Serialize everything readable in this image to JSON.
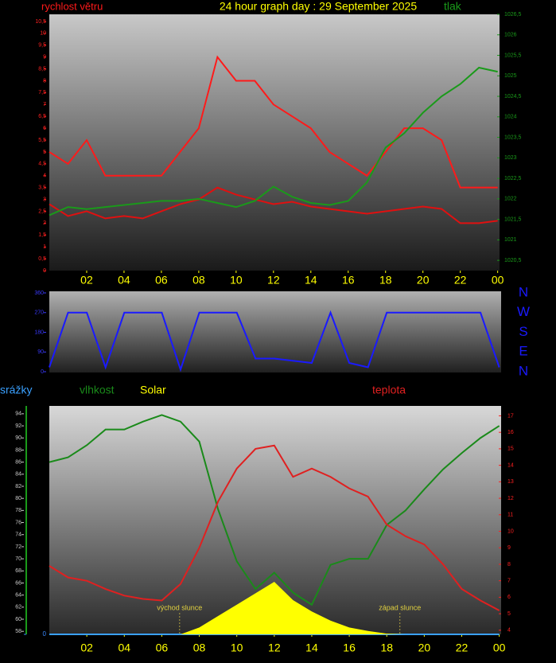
{
  "chart_data": [
    {
      "type": "line",
      "title": "24 hour graph day : 29 September 2025",
      "x": [
        0,
        1,
        2,
        3,
        4,
        5,
        6,
        7,
        8,
        9,
        10,
        11,
        12,
        13,
        14,
        15,
        16,
        17,
        18,
        19,
        20,
        21,
        22,
        23,
        24
      ],
      "xlim": [
        0,
        24.1
      ],
      "xticks": [
        {
          "value": 2,
          "label": "02"
        },
        {
          "value": 4,
          "label": "04"
        },
        {
          "value": 6,
          "label": "06"
        },
        {
          "value": 8,
          "label": "08"
        },
        10,
        12,
        14,
        16,
        18,
        20,
        22,
        {
          "value": 24,
          "label": "00"
        }
      ],
      "ylim": [
        0,
        10.8
      ],
      "yticks": [
        0,
        {
          "value": 0.5,
          "label": "0,5"
        },
        1,
        {
          "value": 1.5,
          "label": "1,5"
        },
        2,
        {
          "value": 2.5,
          "label": "2,5"
        },
        3,
        {
          "value": 3.5,
          "label": "3,5"
        },
        4,
        {
          "value": 4.5,
          "label": "4,5"
        },
        5,
        {
          "value": 5.5,
          "label": "5,5"
        },
        6,
        {
          "value": 6.5,
          "label": "6,5"
        },
        7,
        {
          "value": 7.5,
          "label": "7,5"
        },
        8,
        {
          "value": 8.5,
          "label": "8,5"
        },
        9,
        {
          "value": 9.5,
          "label": "9,5"
        },
        10,
        {
          "value": 10.5,
          "label": "10,5"
        }
      ],
      "y2lim": [
        1020.25,
        1026.5
      ],
      "y2ticks": [
        {
          "value": 1020.5,
          "label": "1020,5"
        },
        1021,
        {
          "value": 1021.5,
          "label": "1021,5"
        },
        1022,
        {
          "value": 1022.5,
          "label": "1022,5"
        },
        1023,
        {
          "value": 1023.5,
          "label": "1023,5"
        },
        1024,
        {
          "value": 1024.5,
          "label": "1024,5"
        },
        1025,
        {
          "value": 1025.5,
          "label": "1025,5"
        },
        1026,
        {
          "value": 1026.5,
          "label": "1026,5"
        }
      ],
      "series": [
        {
          "name": "rychlost větru",
          "color": "#ff1a1a",
          "values": [
            5,
            4.5,
            5.5,
            4,
            4,
            4,
            4,
            5,
            6,
            9,
            8,
            8,
            7,
            6.5,
            6,
            5,
            4.5,
            4,
            5,
            6,
            6,
            5.5,
            3.5,
            3.5,
            3.5
          ]
        },
        {
          "color": "#e01010",
          "values": [
            2.8,
            2.3,
            2.5,
            2.2,
            2.3,
            2.2,
            2.5,
            2.8,
            3,
            3.5,
            3.2,
            3,
            2.8,
            2.9,
            2.7,
            2.6,
            2.5,
            2.4,
            2.5,
            2.6,
            2.7,
            2.6,
            2,
            2,
            2.1
          ]
        },
        {
          "name": "tlak",
          "color": "#1a9a1a",
          "axis": "y2",
          "values": [
            1021.6,
            1021.8,
            1021.75,
            1021.8,
            1021.85,
            1021.9,
            1021.95,
            1021.95,
            1022.0,
            1021.9,
            1021.8,
            1021.95,
            1022.3,
            1022.05,
            1021.9,
            1021.85,
            1021.95,
            1022.4,
            1023.25,
            1023.6,
            1024.1,
            1024.5,
            1024.8,
            1025.2,
            1025.1
          ]
        }
      ]
    },
    {
      "type": "line",
      "x": [
        0,
        1,
        2,
        3,
        4,
        5,
        6,
        7,
        8,
        9,
        10,
        11,
        12,
        13,
        14,
        15,
        16,
        17,
        18,
        19,
        20,
        21,
        22,
        23,
        24
      ],
      "xlim": [
        0,
        24.1
      ],
      "ylim": [
        0,
        360
      ],
      "yticks": [
        0,
        90,
        180,
        270,
        360
      ],
      "y2lim": [
        0,
        360
      ],
      "y2ticks": [
        {
          "value": 360,
          "label": "N"
        },
        {
          "value": 270,
          "label": "W"
        },
        {
          "value": 180,
          "label": "S"
        },
        {
          "value": 90,
          "label": "E"
        },
        {
          "value": 0,
          "label": "N"
        }
      ],
      "series": [
        {
          "color": "#1a1aff",
          "values": [
            20,
            270,
            270,
            20,
            270,
            270,
            270,
            10,
            270,
            270,
            270,
            60,
            60,
            50,
            40,
            270,
            40,
            20,
            270,
            270,
            270,
            270,
            270,
            270,
            20
          ]
        }
      ]
    },
    {
      "type": "line",
      "x": [
        0,
        1,
        2,
        3,
        4,
        5,
        6,
        7,
        8,
        9,
        10,
        11,
        12,
        13,
        14,
        15,
        16,
        17,
        18,
        19,
        20,
        21,
        22,
        23,
        24
      ],
      "xlim": [
        0,
        24.1
      ],
      "xticks": [
        {
          "value": 2,
          "label": "02"
        },
        {
          "value": 4,
          "label": "04"
        },
        {
          "value": 6,
          "label": "06"
        },
        {
          "value": 8,
          "label": "08"
        },
        10,
        12,
        14,
        16,
        18,
        20,
        22,
        {
          "value": 24,
          "label": "00"
        }
      ],
      "ylim": [
        57.5,
        95.3
      ],
      "yticks": [
        58,
        60,
        62,
        64,
        66,
        68,
        70,
        72,
        74,
        76,
        78,
        80,
        82,
        84,
        86,
        88,
        90,
        92,
        94
      ],
      "y2lim": [
        3.75,
        17.6
      ],
      "y2ticks": [
        4,
        5,
        6,
        7,
        8,
        9,
        10,
        11,
        12,
        13,
        14,
        15,
        16,
        17
      ],
      "y3lim": [
        0,
        10
      ],
      "y3ticks": [
        0
      ],
      "y4lim": [
        0,
        1000
      ],
      "annotations": [
        {
          "text": "východ slunce",
          "x": 6.95
        },
        {
          "text": "západ slunce",
          "x": 18.7
        }
      ],
      "series": [
        {
          "name": "srážky",
          "color": "#3aa0ff",
          "axis": "y3",
          "values": [
            0,
            0,
            0,
            0,
            0,
            0,
            0,
            0,
            0,
            0,
            0,
            0,
            0,
            0,
            0,
            0,
            0,
            0,
            0,
            0,
            0,
            0,
            0,
            0,
            0
          ]
        },
        {
          "name": "Solar",
          "color": "#ffff00",
          "axis": "y4",
          "kind": "area",
          "values": [
            0,
            0,
            0,
            0,
            0,
            0,
            0,
            0,
            30,
            80,
            130,
            180,
            230,
            150,
            100,
            60,
            30,
            15,
            3,
            0,
            0,
            0,
            0,
            0,
            0
          ]
        },
        {
          "name": "vlhkost",
          "color": "#1a8a1a",
          "values": [
            86,
            86.8,
            88.8,
            91.4,
            91.4,
            92.7,
            93.8,
            92.7,
            89.4,
            78.2,
            69.6,
            65,
            67.7,
            64.4,
            62.4,
            69,
            70,
            70,
            75.6,
            78,
            81.5,
            84.8,
            87.5,
            90,
            92
          ]
        },
        {
          "name": "teplota",
          "color": "#e02020",
          "axis": "y2",
          "values": [
            7.9,
            7.2,
            7.0,
            6.5,
            6.1,
            5.9,
            5.8,
            6.8,
            9.0,
            11.8,
            13.8,
            15,
            15.2,
            13.3,
            13.8,
            13.3,
            12.6,
            12.1,
            10.4,
            9.7,
            9.2,
            8,
            6.5,
            5.8,
            5.2
          ]
        }
      ]
    }
  ]
}
